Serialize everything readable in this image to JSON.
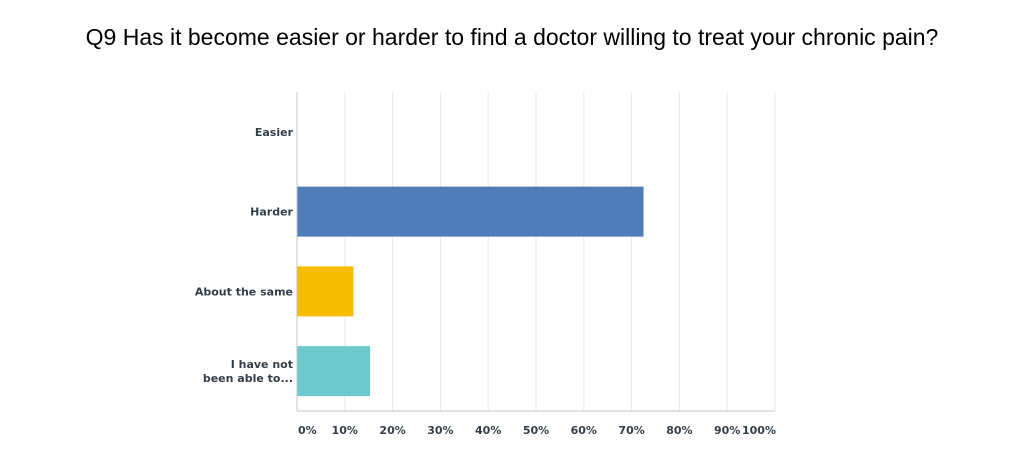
{
  "chart_data": {
    "type": "bar",
    "orientation": "horizontal",
    "title": "Q9 Has it become easier or harder to find a doctor willing to treat your chronic pain?",
    "categories": [
      [
        "Easier"
      ],
      [
        "Harder"
      ],
      [
        "About the same"
      ],
      [
        "I have not",
        "been able to..."
      ]
    ],
    "values": [
      0,
      72.5,
      11.8,
      15.3
    ],
    "colors": [
      "#4f7db8",
      "#4f7db8",
      "#f7bd00",
      "#6ccacd"
    ],
    "x_ticks": [
      "0%",
      "10%",
      "20%",
      "30%",
      "40%",
      "50%",
      "60%",
      "70%",
      "80%",
      "90%",
      "100%"
    ],
    "xlim": [
      0,
      100
    ],
    "grid": true,
    "xlabel": "",
    "ylabel": ""
  }
}
